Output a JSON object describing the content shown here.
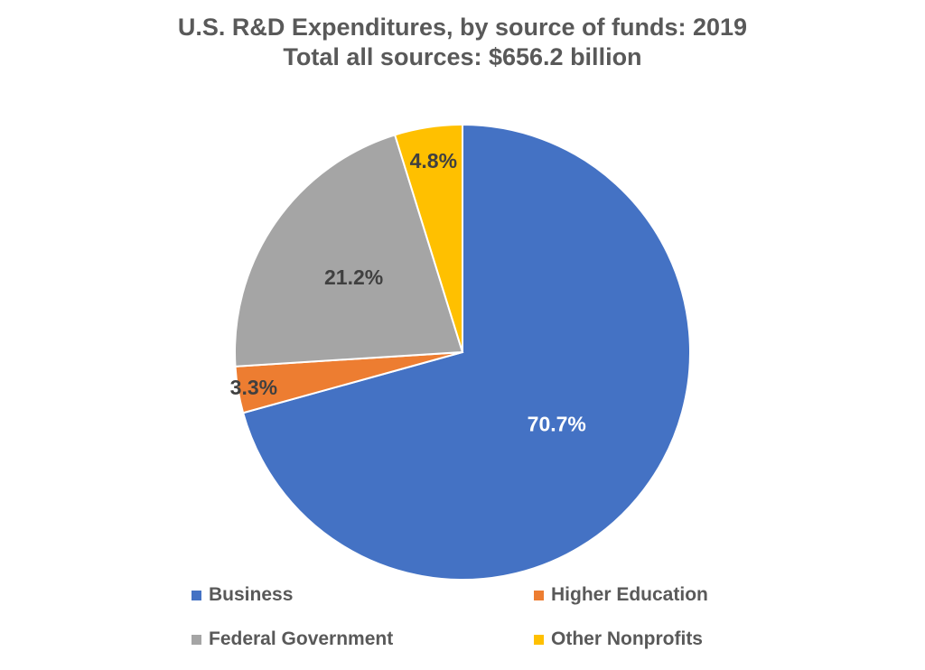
{
  "title_line1": "U.S. R&D Expenditures, by source of funds: 2019",
  "title_line2": "Total all sources:  $656.2 billion",
  "chart_data": {
    "type": "pie",
    "title": "U.S. R&D Expenditures, by source of funds: 2019",
    "subtitle": "Total all sources:  $656.2 billion",
    "start_angle_deg": 0,
    "direction": "clockwise",
    "legend_position": "bottom",
    "slices": [
      {
        "name": "Business",
        "value": 70.7,
        "label": "70.7%",
        "color": "#4472C4",
        "label_color": "#FFFFFF"
      },
      {
        "name": "Higher Education",
        "value": 3.3,
        "label": "3.3%",
        "color": "#ED7D31",
        "label_color": "#404040"
      },
      {
        "name": "Federal Government",
        "value": 21.2,
        "label": "21.2%",
        "color": "#A5A5A5",
        "label_color": "#404040"
      },
      {
        "name": "Other Nonprofits",
        "value": 4.8,
        "label": "4.8%",
        "color": "#FFC000",
        "label_color": "#404040"
      }
    ]
  },
  "legend": [
    {
      "label": "Business",
      "color": "#4472C4"
    },
    {
      "label": "Higher Education",
      "color": "#ED7D31"
    },
    {
      "label": "Federal Government",
      "color": "#A5A5A5"
    },
    {
      "label": "Other Nonprofits",
      "color": "#FFC000"
    }
  ]
}
